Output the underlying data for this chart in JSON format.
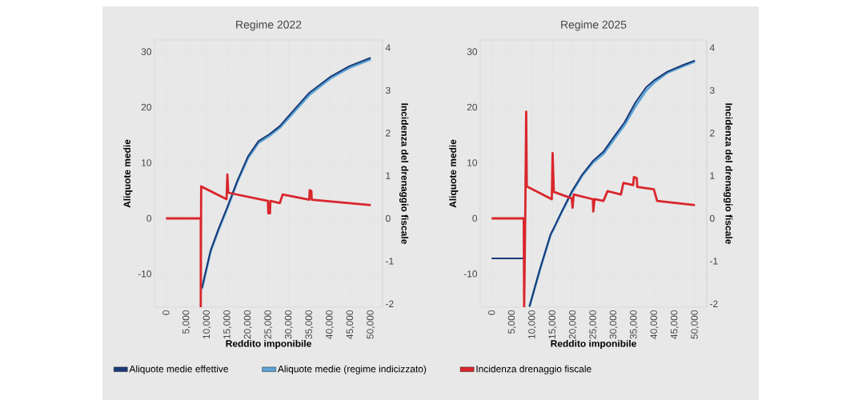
{
  "chart_data": [
    {
      "type": "line",
      "title": "Regime 2022",
      "xlabel": "Reddito imponibile",
      "ylabel": "Aliquote medie",
      "y2label": "Incidenza del drenaggio fiscale",
      "xlim": [
        -2800,
        52900
      ],
      "ylim": [
        -16,
        32.1
      ],
      "y2lim": [
        -2.08,
        4.18
      ],
      "xticks": [
        0,
        {
          "value": 5000,
          "label": "5,000"
        },
        {
          "value": 10000,
          "label": "10,000"
        },
        {
          "value": 15000,
          "label": "15,000"
        },
        {
          "value": 20000,
          "label": "20,000"
        },
        {
          "value": 25000,
          "label": "25,000"
        },
        {
          "value": 30000,
          "label": "30,000"
        },
        {
          "value": 35000,
          "label": "35,000"
        },
        {
          "value": 40000,
          "label": "40,000"
        },
        {
          "value": 45000,
          "label": "45,000"
        },
        {
          "value": 50000,
          "label": "50,000"
        }
      ],
      "yticks": [
        -10,
        0,
        10,
        20,
        30
      ],
      "y2ticks": [
        -2,
        -1,
        0,
        1,
        2,
        3,
        4
      ],
      "grid": true,
      "legend": "bottom",
      "marker": "none",
      "series": [
        {
          "name": "Aliquote medie effettive",
          "color": "#1b3a78",
          "x": [
            8800,
            10900,
            12840,
            14930,
            17400,
            20000,
            22600,
            25200,
            27800,
            30400,
            35000,
            40200,
            44800,
            50000
          ],
          "values": [
            -12.5,
            -5.8,
            -1.9,
            1.9,
            6.7,
            11.1,
            13.9,
            15.1,
            16.6,
            18.8,
            22.6,
            25.5,
            27.4,
            28.9
          ]
        },
        {
          "name": "Aliquote medie (regime indicizzato)",
          "color": "#5ba3d4",
          "x": [
            8800,
            10900,
            12840,
            14930,
            17400,
            20000,
            22600,
            25200,
            27800,
            30400,
            35000,
            40200,
            44800,
            50000
          ],
          "values": [
            -12.7,
            -6.0,
            -2.1,
            1.7,
            6.5,
            10.8,
            13.6,
            14.8,
            16.3,
            18.4,
            22.2,
            25.2,
            27.1,
            28.6
          ]
        },
        {
          "name": "Incidenza drenaggio fiscale",
          "color": "#d9262c",
          "axis": "y2",
          "x": [
            0,
            8500,
            8500,
            8600,
            14800,
            15000,
            15200,
            15300,
            24900,
            25000,
            25400,
            25500,
            27800,
            28500,
            35000,
            35100,
            35500,
            35600,
            50000
          ],
          "values": [
            0,
            0,
            -2.08,
            0.75,
            0.45,
            1.03,
            0.62,
            0.6,
            0.41,
            0.12,
            0.12,
            0.41,
            0.36,
            0.56,
            0.44,
            0.66,
            0.64,
            0.44,
            0.31
          ]
        }
      ]
    },
    {
      "type": "line",
      "title": "Regime 2025",
      "xlabel": "Reddito imponibile",
      "ylabel": "Aliquote medie",
      "y2label": "Incidenza del drenaggio fiscale",
      "xlim": [
        -2800,
        52900
      ],
      "ylim": [
        -16,
        32.1
      ],
      "y2lim": [
        -2.08,
        4.18
      ],
      "xticks": [
        0,
        {
          "value": 5000,
          "label": "5,000"
        },
        {
          "value": 10000,
          "label": "10,000"
        },
        {
          "value": 15000,
          "label": "15,000"
        },
        {
          "value": 20000,
          "label": "20,000"
        },
        {
          "value": 25000,
          "label": "25,000"
        },
        {
          "value": 30000,
          "label": "30,000"
        },
        {
          "value": 35000,
          "label": "35,000"
        },
        {
          "value": 40000,
          "label": "40,000"
        },
        {
          "value": 45000,
          "label": "45,000"
        },
        {
          "value": 50000,
          "label": "50,000"
        }
      ],
      "yticks": [
        -10,
        0,
        10,
        20,
        30
      ],
      "y2ticks": [
        -2,
        -1,
        0,
        1,
        2,
        3,
        4
      ],
      "grid": true,
      "marker": "none",
      "series": [
        {
          "color": "#1b3a78",
          "x": [
            0,
            7900,
            8500,
            9300,
            11900,
            14500,
            15200,
            17100,
            19700,
            22300,
            24900,
            27500,
            30100,
            32700,
            35400,
            38000,
            39900,
            43200,
            47100,
            50000
          ],
          "values": [
            -7.2,
            -7.2,
            null,
            -15.9,
            -9.1,
            -2.9,
            -1.9,
            1.0,
            4.8,
            7.9,
            10.3,
            12.0,
            14.7,
            17.3,
            20.9,
            23.6,
            24.8,
            26.4,
            27.6,
            28.4
          ]
        },
        {
          "color": "#5ba3d4",
          "x": [
            9300,
            11900,
            14500,
            15200,
            17100,
            19700,
            22300,
            24900,
            27500,
            30100,
            32700,
            35400,
            38000,
            39900,
            43200,
            47100,
            50000
          ],
          "values": [
            -15.9,
            -9.2,
            -3.0,
            -2.0,
            0.9,
            4.6,
            7.7,
            10.0,
            11.6,
            14.2,
            16.8,
            20.2,
            23.0,
            24.4,
            26.2,
            27.4,
            28.2
          ]
        },
        {
          "color": "#d9262c",
          "axis": "y2",
          "x": [
            0,
            7900,
            8000,
            8300,
            8500,
            8650,
            14800,
            15000,
            15300,
            19700,
            19900,
            20200,
            24900,
            25000,
            25300,
            27500,
            28500,
            31800,
            32400,
            34800,
            35000,
            35700,
            35800,
            39900,
            40700,
            50000
          ],
          "values": [
            0,
            0,
            -2.08,
            0.31,
            2.5,
            0.75,
            0.45,
            1.53,
            0.62,
            0.47,
            0.25,
            0.56,
            0.45,
            0.16,
            0.45,
            0.41,
            0.64,
            0.56,
            0.83,
            0.78,
            0.97,
            0.94,
            0.74,
            0.68,
            0.41,
            0.31
          ]
        }
      ]
    }
  ]
}
